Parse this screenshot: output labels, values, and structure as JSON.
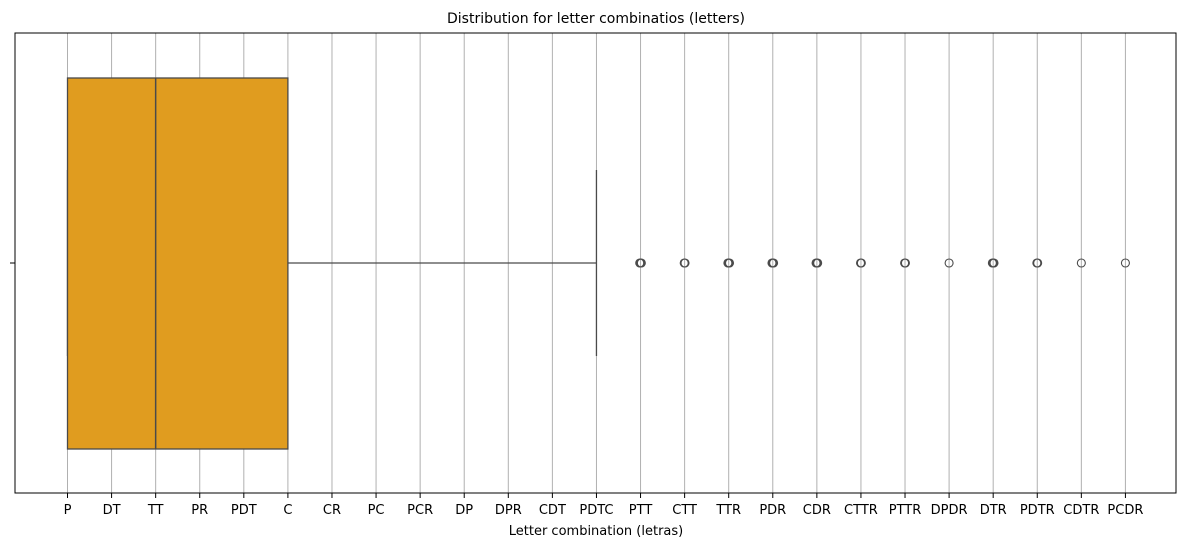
{
  "chart_data": {
    "type": "boxplot",
    "title": "Distribution for letter combinatios (letters)",
    "xlabel": "Letter combination (letras)",
    "ylabel": "",
    "categories": [
      "P",
      "DT",
      "TT",
      "PR",
      "PDT",
      "C",
      "CR",
      "PC",
      "PCR",
      "DP",
      "DPR",
      "CDT",
      "PDTC",
      "PTT",
      "CTT",
      "TTR",
      "PDR",
      "CDR",
      "CTTR",
      "PTTR",
      "DPDR",
      "DTR",
      "PDTR",
      "CDTR",
      "PCDR"
    ],
    "box": {
      "whisker_low": "P",
      "q1": "P",
      "median": "TT",
      "q3": "C",
      "whisker_high": "PDTC"
    },
    "outliers": [
      {
        "x": "PTT",
        "y": 0,
        "count": 3
      },
      {
        "x": "CTT",
        "y": 0,
        "count": 2
      },
      {
        "x": "TTR",
        "y": 0,
        "count": 3
      },
      {
        "x": "PDR",
        "y": 0,
        "count": 3
      },
      {
        "x": "CDR",
        "y": 0,
        "count": 3
      },
      {
        "x": "CTTR",
        "y": 0,
        "count": 2
      },
      {
        "x": "PTTR",
        "y": 0,
        "count": 2
      },
      {
        "x": "DPDR",
        "y": 0,
        "count": 1
      },
      {
        "x": "DTR",
        "y": 0,
        "count": 3
      },
      {
        "x": "PDTR",
        "y": 0,
        "count": 2
      },
      {
        "x": "CDTR",
        "y": 0,
        "count": 1
      },
      {
        "x": "PCDR",
        "y": 0,
        "count": 1
      }
    ],
    "y_tick_labels": [
      ""
    ],
    "grid": "x",
    "colors": {
      "box_fill": "#e09c1f",
      "lines": "#4a4a4a",
      "grid": "#b0b0b0",
      "outlier_edge": "#4a4a4a"
    }
  }
}
